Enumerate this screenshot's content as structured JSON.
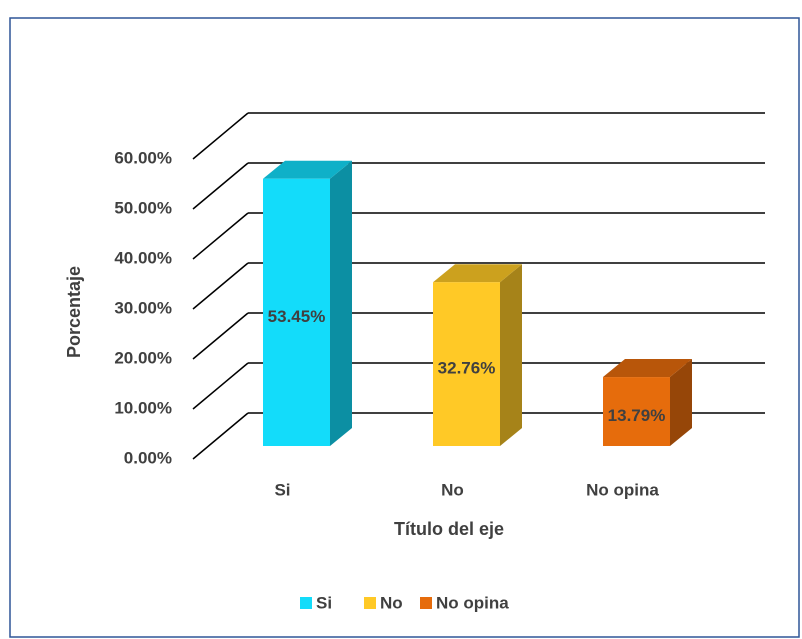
{
  "chart_data": {
    "type": "bar",
    "categories": [
      "Si",
      "No",
      "No opina"
    ],
    "series": [
      {
        "name": "Porcentaje",
        "values": [
          53.45,
          32.76,
          13.79
        ],
        "value_labels": [
          "53.45%",
          "32.76%",
          "13.79%"
        ],
        "colors": [
          "#13dcfa",
          "#ffc926",
          "#e66c0c"
        ]
      }
    ],
    "legend": [
      "Si",
      "No",
      "No opina"
    ],
    "ylabel": "Porcentaje",
    "xlabel": "Título del eje",
    "ylim": [
      0,
      60
    ],
    "yticks": [
      {
        "value": 0,
        "label": "0.00%"
      },
      {
        "value": 10,
        "label": "10.00%"
      },
      {
        "value": 20,
        "label": "20.00%"
      },
      {
        "value": 30,
        "label": "30.00%"
      },
      {
        "value": 40,
        "label": "40.00%"
      },
      {
        "value": 50,
        "label": "50.00%"
      },
      {
        "value": 60,
        "label": "60.00%"
      }
    ],
    "grid": true,
    "legend_position": "bottom"
  }
}
